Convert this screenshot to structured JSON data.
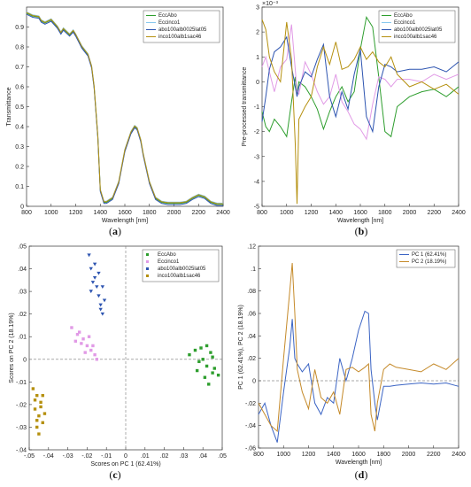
{
  "colors": {
    "green": "#2e9e2e",
    "lightblue": "#87c8ee",
    "blue": "#2d54b0",
    "olive": "#b5900f",
    "pink": "#e19ae6",
    "pc1": "#3b64c4",
    "pc2": "#c58a2a"
  },
  "chart_data": [
    {
      "id": "a",
      "type": "line",
      "caption": "a",
      "xlabel": "Wavelength [nm]",
      "ylabel": "Transmittance",
      "xlim": [
        800,
        2400
      ],
      "ylim": [
        0,
        1
      ],
      "xticks": [
        800,
        1000,
        1200,
        1400,
        1600,
        1800,
        2000,
        2200,
        2400
      ],
      "yticks": [
        0,
        0.1,
        0.2,
        0.3,
        0.4,
        0.5,
        0.6,
        0.7,
        0.8,
        0.9
      ],
      "legend": [
        "EccAbo",
        "Eccinco1",
        "abo100alb0025lat05",
        "inco100alb1sac46"
      ],
      "series_colors": [
        "green",
        "lightblue",
        "blue",
        "olive"
      ],
      "x": [
        800,
        850,
        900,
        920,
        950,
        1000,
        1050,
        1080,
        1100,
        1150,
        1180,
        1200,
        1250,
        1300,
        1330,
        1350,
        1380,
        1400,
        1430,
        1450,
        1500,
        1550,
        1600,
        1650,
        1680,
        1700,
        1730,
        1750,
        1800,
        1850,
        1900,
        1950,
        2000,
        2050,
        2100,
        2150,
        2200,
        2250,
        2300,
        2350,
        2400
      ],
      "base": [
        0.97,
        0.955,
        0.95,
        0.93,
        0.92,
        0.935,
        0.9,
        0.87,
        0.89,
        0.86,
        0.88,
        0.86,
        0.8,
        0.76,
        0.7,
        0.6,
        0.35,
        0.08,
        0.02,
        0.02,
        0.04,
        0.12,
        0.28,
        0.37,
        0.4,
        0.39,
        0.33,
        0.26,
        0.12,
        0.04,
        0.02,
        0.015,
        0.015,
        0.015,
        0.02,
        0.04,
        0.055,
        0.045,
        0.02,
        0.01,
        0.01
      ]
    },
    {
      "id": "b",
      "type": "line",
      "caption": "b",
      "xlabel": "Wavelength [nm]",
      "ylabel": "Pre-processed transmittance",
      "yexp": "×10⁻³",
      "xlim": [
        800,
        2400
      ],
      "ylim": [
        -5,
        3
      ],
      "xticks": [
        800,
        1000,
        1200,
        1400,
        1600,
        1800,
        2000,
        2200,
        2400
      ],
      "yticks": [
        -5,
        -4,
        -3,
        -2,
        -1,
        0,
        1,
        2,
        3
      ],
      "legend": [
        "EccAbo",
        "Eccinco1",
        "abo100alb0025lat05",
        "inco100alb1sac46"
      ],
      "series_colors": [
        "green",
        "lightblue",
        "blue",
        "olive"
      ],
      "x": [
        800,
        830,
        860,
        900,
        950,
        1000,
        1040,
        1070,
        1085,
        1100,
        1150,
        1200,
        1250,
        1300,
        1350,
        1400,
        1450,
        1500,
        1550,
        1600,
        1650,
        1700,
        1750,
        1800,
        1850,
        1900,
        2000,
        2100,
        2200,
        2300,
        2400
      ],
      "series": [
        {
          "name": "EccAbo",
          "color": "green",
          "values": [
            -1.2,
            -1.8,
            -2.0,
            -1.5,
            -1.8,
            -2.2,
            -0.8,
            0.2,
            -0.5,
            0.0,
            -0.2,
            -0.6,
            -1.1,
            -1.9,
            -1.2,
            -0.6,
            -0.2,
            -0.8,
            -0.4,
            1.3,
            2.6,
            2.2,
            0.2,
            -2.0,
            -2.2,
            -1.0,
            -0.6,
            -0.4,
            -0.3,
            -0.6,
            -0.2
          ]
        },
        {
          "name": "Eccinco1",
          "color": "pink",
          "values": [
            0.6,
            1.0,
            0.4,
            -0.4,
            0.6,
            0.9,
            2.3,
            0.5,
            -0.4,
            -0.5,
            0.8,
            0.3,
            -0.4,
            -0.9,
            -0.6,
            0.3,
            -0.8,
            -1.2,
            -1.7,
            -1.9,
            -2.3,
            -0.9,
            0.2,
            0.1,
            -0.2,
            0.1,
            0.1,
            0.0,
            0.3,
            0.1,
            0.3
          ]
        },
        {
          "name": "abo100alb0025lat05",
          "color": "blue",
          "values": [
            -1.6,
            -0.6,
            0.5,
            1.2,
            1.4,
            1.8,
            0.6,
            -0.2,
            -0.6,
            -0.2,
            0.4,
            0.2,
            0.9,
            1.5,
            -0.6,
            -1.4,
            -0.4,
            -1.1,
            0.3,
            1.3,
            -1.4,
            -2.0,
            -0.2,
            0.7,
            0.6,
            0.4,
            0.5,
            0.5,
            0.6,
            0.4,
            0.8
          ]
        },
        {
          "name": "inco100alb1sac46",
          "color": "olive",
          "values": [
            2.5,
            2.1,
            1.0,
            0.4,
            0.0,
            2.4,
            0.9,
            -2.5,
            -4.9,
            -1.5,
            -1.0,
            -0.6,
            0.6,
            1.4,
            0.7,
            1.6,
            0.5,
            0.6,
            0.9,
            1.4,
            0.9,
            1.2,
            0.8,
            0.6,
            1.0,
            0.3,
            -0.2,
            0.0,
            -0.3,
            -0.1,
            -0.5
          ]
        }
      ]
    },
    {
      "id": "c",
      "type": "scatter",
      "caption": "c",
      "xlabel": "Scores on PC 1 (62.41%)",
      "ylabel": "Scores on PC 2 (18.19%)",
      "xlim": [
        -0.05,
        0.05
      ],
      "ylim": [
        -0.04,
        0.05
      ],
      "xticks": [
        -0.05,
        -0.04,
        -0.03,
        -0.02,
        -0.01,
        0,
        0.01,
        0.02,
        0.03,
        0.04,
        0.05
      ],
      "yticks": [
        -0.04,
        -0.03,
        -0.02,
        -0.01,
        0,
        0.01,
        0.02,
        0.03,
        0.04,
        0.05
      ],
      "legend": [
        "EccAbo",
        "Eccinco1",
        "abo100alb0025lat05",
        "inco100alb1sac46"
      ],
      "series": [
        {
          "name": "EccAbo",
          "color": "green",
          "marker": "square",
          "points": [
            [
              0.033,
              0.002
            ],
            [
              0.036,
              0.004
            ],
            [
              0.04,
              0.0
            ],
            [
              0.042,
              -0.003
            ],
            [
              0.045,
              -0.006
            ],
            [
              0.038,
              -0.001
            ],
            [
              0.044,
              0.003
            ],
            [
              0.041,
              -0.008
            ],
            [
              0.046,
              -0.004
            ],
            [
              0.039,
              0.005
            ],
            [
              0.043,
              -0.011
            ],
            [
              0.037,
              -0.005
            ],
            [
              0.045,
              0.001
            ],
            [
              0.048,
              -0.007
            ],
            [
              0.042,
              0.006
            ]
          ]
        },
        {
          "name": "Eccinco1",
          "color": "pink",
          "marker": "square",
          "points": [
            [
              -0.028,
              0.014
            ],
            [
              -0.025,
              0.011
            ],
            [
              -0.022,
              0.009
            ],
            [
              -0.02,
              0.006
            ],
            [
              -0.018,
              0.004
            ],
            [
              -0.023,
              0.007
            ],
            [
              -0.019,
              0.01
            ],
            [
              -0.016,
              0.002
            ],
            [
              -0.026,
              0.008
            ],
            [
              -0.021,
              0.003
            ],
            [
              -0.017,
              0.006
            ],
            [
              -0.024,
              0.012
            ],
            [
              -0.015,
              0.0
            ]
          ]
        },
        {
          "name": "abo100alb0025lat05",
          "color": "blue",
          "marker": "triangle",
          "points": [
            [
              -0.019,
              0.046
            ],
            [
              -0.018,
              0.04
            ],
            [
              -0.016,
              0.036
            ],
            [
              -0.015,
              0.032
            ],
            [
              -0.014,
              0.028
            ],
            [
              -0.013,
              0.024
            ],
            [
              -0.012,
              0.02
            ],
            [
              -0.017,
              0.034
            ],
            [
              -0.011,
              0.026
            ],
            [
              -0.014,
              0.038
            ],
            [
              -0.018,
              0.03
            ],
            [
              -0.012,
              0.032
            ],
            [
              -0.016,
              0.042
            ],
            [
              -0.013,
              0.022
            ]
          ]
        },
        {
          "name": "inco100alb1sac46",
          "color": "olive",
          "marker": "square",
          "points": [
            [
              -0.048,
              -0.013
            ],
            [
              -0.046,
              -0.016
            ],
            [
              -0.044,
              -0.019
            ],
            [
              -0.047,
              -0.022
            ],
            [
              -0.045,
              -0.025
            ],
            [
              -0.043,
              -0.028
            ],
            [
              -0.046,
              -0.03
            ],
            [
              -0.044,
              -0.021
            ],
            [
              -0.042,
              -0.024
            ],
            [
              -0.047,
              -0.018
            ],
            [
              -0.045,
              -0.033
            ],
            [
              -0.043,
              -0.016
            ],
            [
              -0.046,
              -0.027
            ]
          ]
        }
      ]
    },
    {
      "id": "d",
      "type": "line",
      "caption": "d",
      "xlabel": "Wavelength [nm]",
      "ylabel": "PC 1 (62.41%), PC 2 (18.19%)",
      "xlim": [
        800,
        2400
      ],
      "ylim": [
        -0.06,
        0.12
      ],
      "xticks": [
        800,
        1000,
        1200,
        1400,
        1600,
        1800,
        2000,
        2200,
        2400
      ],
      "yticks": [
        -0.06,
        -0.04,
        -0.02,
        0,
        0.02,
        0.04,
        0.06,
        0.08,
        0.1,
        0.12
      ],
      "legend": [
        "PC 1 (62.41%)",
        "PC 2 (18.19%)"
      ],
      "x": [
        800,
        850,
        900,
        950,
        1000,
        1050,
        1070,
        1090,
        1110,
        1150,
        1200,
        1250,
        1300,
        1350,
        1400,
        1450,
        1500,
        1550,
        1600,
        1650,
        1680,
        1700,
        1730,
        1750,
        1800,
        1850,
        1900,
        2000,
        2100,
        2200,
        2300,
        2400
      ],
      "series": [
        {
          "name": "PC 1 (62.41%)",
          "color": "pc1",
          "values": [
            -0.03,
            -0.02,
            -0.04,
            -0.055,
            -0.01,
            0.03,
            0.055,
            0.02,
            0.015,
            0.008,
            0.015,
            -0.02,
            -0.03,
            -0.015,
            -0.02,
            0.02,
            0.0,
            0.02,
            0.045,
            0.062,
            0.06,
            0.01,
            -0.02,
            -0.035,
            -0.005,
            -0.005,
            -0.004,
            -0.003,
            -0.002,
            -0.003,
            -0.002,
            -0.005
          ]
        },
        {
          "name": "PC 2 (18.19%)",
          "color": "pc2",
          "values": [
            -0.02,
            -0.03,
            -0.04,
            -0.045,
            0.02,
            0.08,
            0.105,
            0.06,
            0.01,
            -0.01,
            -0.025,
            0.01,
            -0.015,
            -0.02,
            -0.01,
            -0.03,
            0.01,
            0.012,
            0.008,
            0.012,
            0.015,
            -0.03,
            -0.045,
            -0.02,
            0.01,
            0.015,
            0.012,
            0.01,
            0.008,
            0.015,
            0.01,
            0.02
          ]
        }
      ]
    }
  ]
}
